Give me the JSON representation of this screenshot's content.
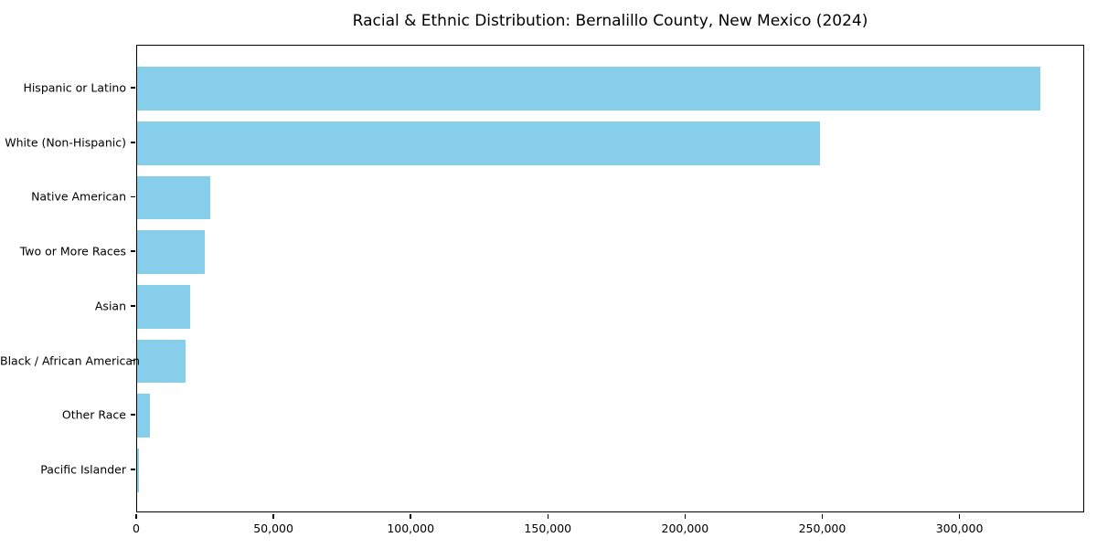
{
  "figure": {
    "background": "#ffffff",
    "text_color": "#000000"
  },
  "chart_data": {
    "type": "bar",
    "orientation": "horizontal",
    "title": "Racial & Ethnic Distribution: Bernalillo County, New Mexico (2024)",
    "xlabel": "",
    "ylabel": "",
    "categories": [
      "Hispanic or Latino",
      "White (Non-Hispanic)",
      "Native American",
      "Two or More Races",
      "Asian",
      "Black / African American",
      "Other Race",
      "Pacific Islander"
    ],
    "values": [
      329000,
      248700,
      26500,
      24800,
      19300,
      17500,
      4700,
      600
    ],
    "bar_color": "#87CEEB",
    "xlim": [
      0,
      345450
    ],
    "x_ticks": [
      0,
      50000,
      100000,
      150000,
      200000,
      250000,
      300000
    ],
    "x_tick_labels": [
      "0",
      "50,000",
      "100,000",
      "150,000",
      "200,000",
      "250,000",
      "300,000"
    ],
    "grid": false,
    "legend": null
  }
}
